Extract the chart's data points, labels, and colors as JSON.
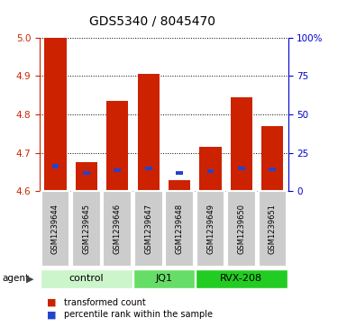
{
  "title": "GDS5340 / 8045470",
  "samples": [
    "GSM1239644",
    "GSM1239645",
    "GSM1239646",
    "GSM1239647",
    "GSM1239648",
    "GSM1239649",
    "GSM1239650",
    "GSM1239651"
  ],
  "red_values": [
    5.0,
    4.675,
    4.835,
    4.905,
    4.63,
    4.715,
    4.845,
    4.77
  ],
  "blue_values": [
    4.665,
    4.648,
    4.655,
    4.66,
    4.648,
    4.652,
    4.66,
    4.657
  ],
  "ylim": [
    4.6,
    5.0
  ],
  "y2lim": [
    0,
    100
  ],
  "yticks": [
    4.6,
    4.7,
    4.8,
    4.9,
    5.0
  ],
  "y2ticks": [
    0,
    25,
    50,
    75,
    100
  ],
  "y2ticklabels": [
    "0",
    "25",
    "50",
    "75",
    "100%"
  ],
  "bar_bottom": 4.6,
  "groups": [
    {
      "label": "control",
      "start": 0,
      "end": 3,
      "color": "#ccf5cc"
    },
    {
      "label": "JQ1",
      "start": 3,
      "end": 5,
      "color": "#66dd66"
    },
    {
      "label": "RVX-208",
      "start": 5,
      "end": 8,
      "color": "#22cc22"
    }
  ],
  "legend_red": "transformed count",
  "legend_blue": "percentile rank within the sample",
  "bar_color_red": "#cc2200",
  "bar_color_blue": "#2244cc",
  "bar_width": 0.7,
  "sample_box_color": "#cccccc",
  "ylabel_color": "#cc2200",
  "y2label_color": "#0000cc",
  "title_fontsize": 10,
  "tick_fontsize": 7.5,
  "sample_fontsize": 6,
  "group_fontsize": 8,
  "legend_fontsize": 7
}
